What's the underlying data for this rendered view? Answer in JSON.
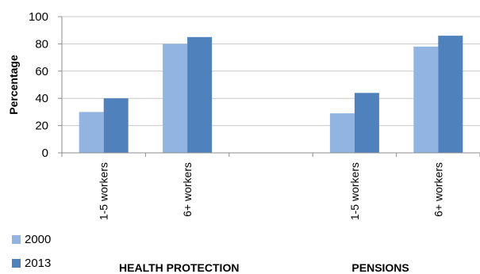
{
  "chart_data": {
    "type": "bar",
    "ylabel": "Percentage",
    "xlabel": "",
    "ylim": [
      0,
      100
    ],
    "yticks": [
      0,
      20,
      40,
      60,
      80,
      100
    ],
    "grid": true,
    "legend_position": "bottom-left",
    "groups": [
      "HEALTH PROTECTION",
      "PENSIONS"
    ],
    "categories": [
      "1-5 workers",
      "6+ workers",
      "",
      "1-5 workers",
      "6+ workers"
    ],
    "series": [
      {
        "name": "2000",
        "color": "#92b4e0",
        "values": [
          30,
          80,
          null,
          29,
          78
        ]
      },
      {
        "name": "2013",
        "color": "#4f81bd",
        "values": [
          40,
          85,
          null,
          44,
          86
        ]
      }
    ]
  }
}
